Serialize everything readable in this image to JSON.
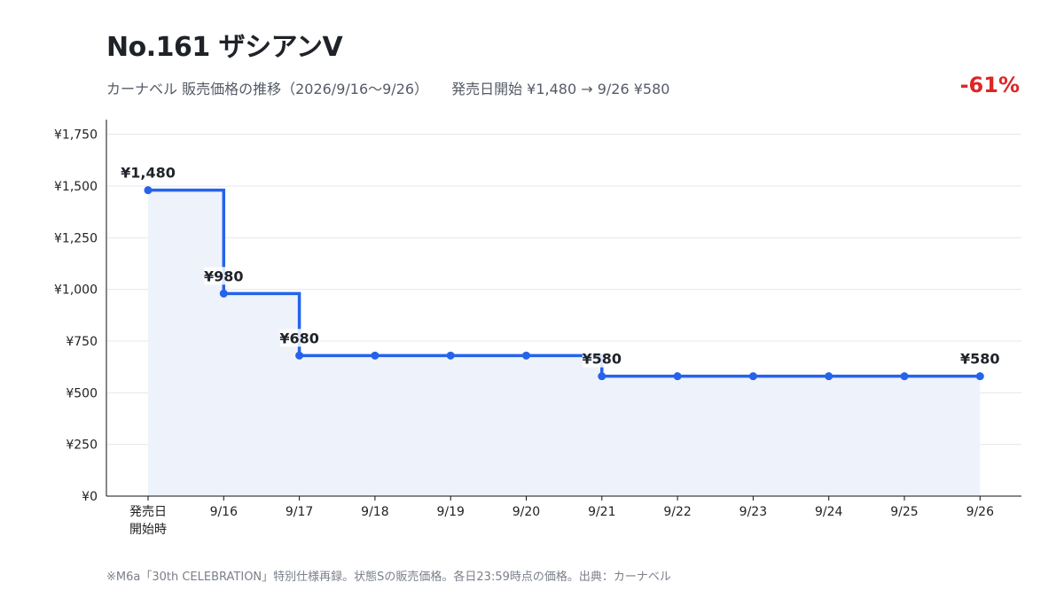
{
  "header": {
    "title": "No.161 ザシアンV",
    "subtitle_left": "カーナベル 販売価格の推移（2026/9/16〜9/26）",
    "subtitle_right": "発売日開始 ¥1,480 → 9/26 ¥580",
    "change": "-61%"
  },
  "footnote": "※M6a「30th CELEBRATION」特別仕様再録。状態Sの販売価格。各日23:59時点の価格。出典：カーナベル",
  "colors": {
    "line": "#2563eb",
    "area": "#eef2fb",
    "change": "#dc2626",
    "grid": "#e5e7eb",
    "axis": "#111111"
  },
  "chart_data": {
    "type": "line",
    "step": true,
    "area_fill": true,
    "grid": true,
    "categories": [
      "発売日\n開始時",
      "9/16",
      "9/17",
      "9/18",
      "9/19",
      "9/20",
      "9/21",
      "9/22",
      "9/23",
      "9/24",
      "9/25",
      "9/26"
    ],
    "values": [
      1480,
      980,
      680,
      680,
      680,
      680,
      580,
      580,
      580,
      580,
      580,
      580
    ],
    "ylim": [
      0,
      1800
    ],
    "yticks": [
      0,
      250,
      500,
      750,
      1000,
      1250,
      1500,
      1750
    ],
    "ytick_labels": [
      "¥0",
      "¥250",
      "¥500",
      "¥750",
      "¥1,000",
      "¥1,250",
      "¥1,500",
      "¥1,750"
    ],
    "data_labels": [
      {
        "index": 0,
        "text": "¥1,480"
      },
      {
        "index": 1,
        "text": "¥980"
      },
      {
        "index": 2,
        "text": "¥680"
      },
      {
        "index": 6,
        "text": "¥580"
      },
      {
        "index": 11,
        "text": "¥580"
      }
    ]
  }
}
